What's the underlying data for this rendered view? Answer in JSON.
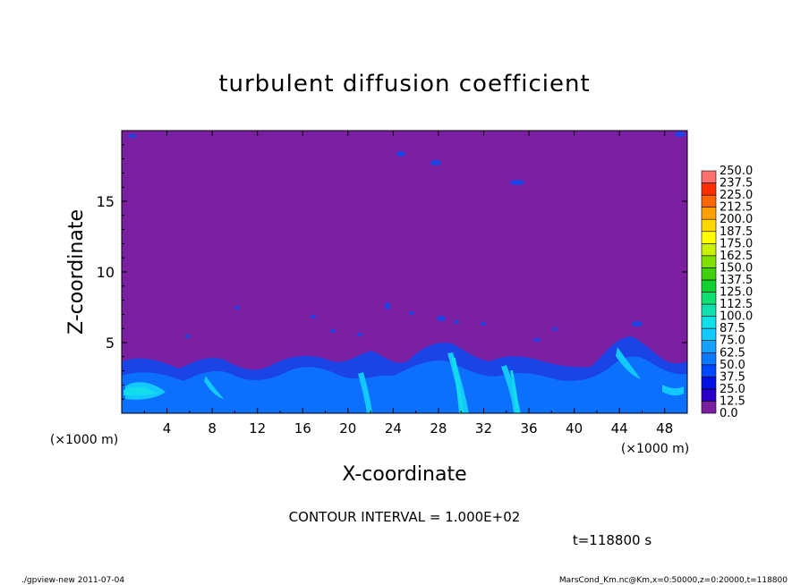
{
  "chart_data": {
    "type": "heatmap",
    "title": "turbulent diffusion coefficient",
    "xlabel": "X-coordinate",
    "ylabel": "Z-coordinate",
    "x_unit": "(×1000 m)",
    "x_unit_right": "(×1000 m)",
    "xlim": [
      0,
      50
    ],
    "ylim": [
      0,
      20
    ],
    "x_ticks": [
      "4",
      "8",
      "12",
      "16",
      "20",
      "24",
      "28",
      "32",
      "36",
      "40",
      "44",
      "48"
    ],
    "y_ticks": [
      "5",
      "10",
      "15"
    ],
    "colorbar_levels": [
      "0.0",
      "12.5",
      "25.0",
      "37.5",
      "50.0",
      "62.5",
      "75.0",
      "87.5",
      "100.0",
      "112.5",
      "125.0",
      "137.5",
      "150.0",
      "162.5",
      "175.0",
      "187.5",
      "200.0",
      "212.5",
      "225.0",
      "237.5",
      "250.0"
    ],
    "colorbar_colors": [
      "#7a1fa2",
      "#2a00c8",
      "#0010e0",
      "#0048ff",
      "#0a78ff",
      "#16a0ff",
      "#12c8ff",
      "#12e0e8",
      "#10e0b0",
      "#10e070",
      "#10d030",
      "#40d010",
      "#80e000",
      "#c8f000",
      "#ffff00",
      "#ffd800",
      "#ffa000",
      "#ff6800",
      "#ff3000",
      "#ff7070"
    ],
    "background_value": "0.0",
    "contour_interval": "CONTOUR INTERVAL = 1.000E+02",
    "time_label": "t=118800 s"
  },
  "footer": {
    "left": "./gpview-new  2011-07-04",
    "right": "MarsCond_Km.nc@Km,x=0:50000,z=0:20000,t=118800"
  }
}
